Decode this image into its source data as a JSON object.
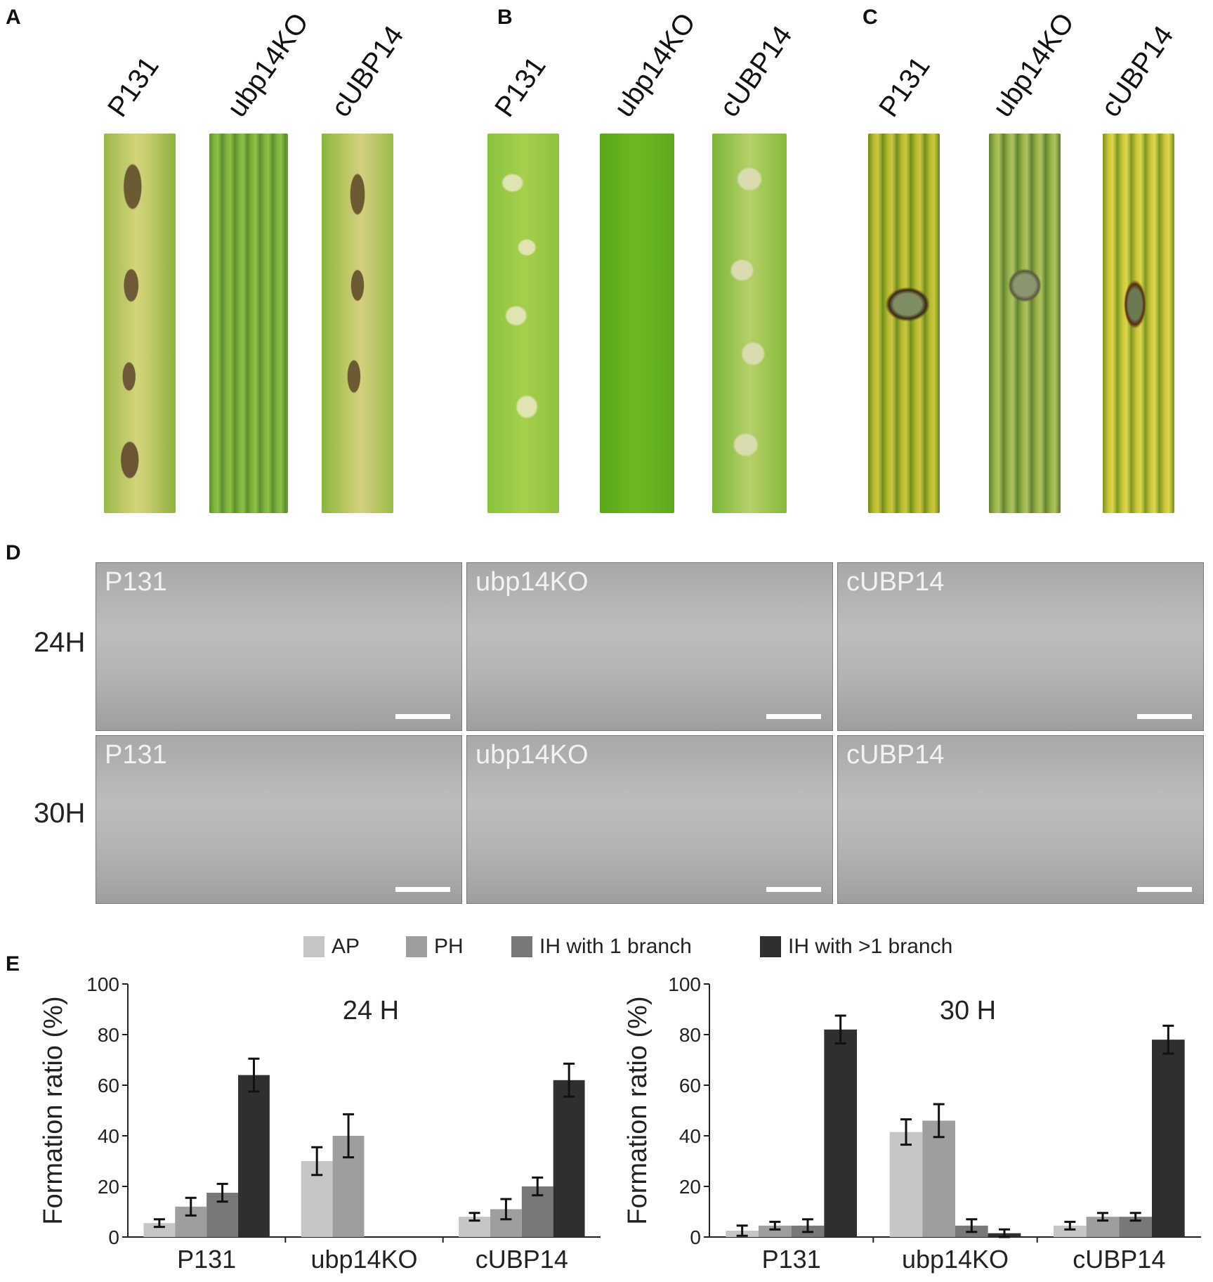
{
  "panels": {
    "a": "A",
    "b": "B",
    "c": "C",
    "d": "D",
    "e": "E"
  },
  "strains": [
    "P131",
    "ubp14KO",
    "cUBP14"
  ],
  "micrographs": {
    "rows": [
      "24H",
      "30H"
    ]
  },
  "colors": {
    "AP": "#c6c6c6",
    "PH": "#9e9e9e",
    "IH1": "#787878",
    "IH2": "#2f2f2f"
  },
  "chart_data": [
    {
      "type": "bar",
      "title": "24 H",
      "ylabel": "Formation ratio (%)",
      "ylim": [
        0,
        100
      ],
      "yticks": [
        "0",
        "20",
        "40",
        "60",
        "80",
        "100"
      ],
      "categories": [
        "P131",
        "ubp14KO",
        "cUBP14"
      ],
      "series": [
        {
          "name": "AP",
          "values": [
            5.5,
            30,
            8
          ],
          "errors": [
            1.5,
            5.5,
            1.5
          ]
        },
        {
          "name": "PH",
          "values": [
            12,
            40,
            11
          ],
          "errors": [
            3.5,
            8.5,
            4
          ]
        },
        {
          "name": "IH with 1 branch",
          "values": [
            17.5,
            0,
            20
          ],
          "errors": [
            3.5,
            0,
            3.5
          ]
        },
        {
          "name": "IH with >1 branch",
          "values": [
            64,
            0,
            62
          ],
          "errors": [
            6.5,
            0,
            6.5
          ]
        }
      ],
      "legend": "top"
    },
    {
      "type": "bar",
      "title": "30 H",
      "ylabel": "Formation ratio (%)",
      "ylim": [
        0,
        100
      ],
      "yticks": [
        "0",
        "20",
        "40",
        "60",
        "80",
        "100"
      ],
      "categories": [
        "P131",
        "ubp14KO",
        "cUBP14"
      ],
      "series": [
        {
          "name": "AP",
          "values": [
            2.5,
            41.5,
            4.5
          ],
          "errors": [
            2,
            5,
            1.5
          ]
        },
        {
          "name": "PH",
          "values": [
            4.5,
            46,
            8
          ],
          "errors": [
            1.5,
            6.5,
            1.5
          ]
        },
        {
          "name": "IH with 1 branch",
          "values": [
            4.5,
            4.5,
            8
          ],
          "errors": [
            2.5,
            2.5,
            1.5
          ]
        },
        {
          "name": "IH with >1 branch",
          "values": [
            82,
            1.5,
            78
          ],
          "errors": [
            5.5,
            1.5,
            5.5
          ]
        }
      ],
      "legend": "top"
    }
  ]
}
